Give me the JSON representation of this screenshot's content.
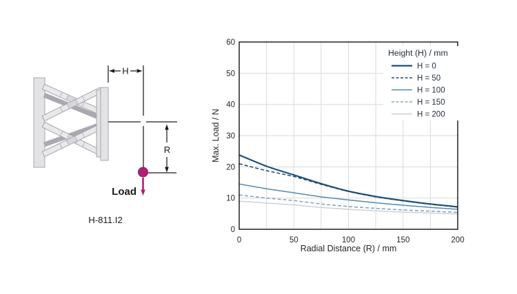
{
  "figure": {
    "caption": "H-811.I2",
    "dim_h_label": "H",
    "dim_r_label": "R",
    "load_label": "Load",
    "marker_color": "#b01e77"
  },
  "chart_data": {
    "type": "line",
    "title": "",
    "xlabel": "Radial Distance (R) / mm",
    "ylabel": "Max. Load / N",
    "xlim": [
      0,
      200
    ],
    "ylim": [
      0,
      60
    ],
    "x_ticks": [
      0,
      50,
      100,
      150,
      200
    ],
    "y_ticks": [
      0,
      10,
      20,
      30,
      40,
      50,
      60
    ],
    "x_grid_step": 25,
    "y_grid_step": 10,
    "grid": true,
    "grid_color": "#d9d9d9",
    "legend_title": "Height (H) / mm",
    "legend_position": "top-right",
    "x": [
      0,
      25,
      50,
      75,
      100,
      125,
      150,
      175,
      200
    ],
    "series": [
      {
        "name": "H = 0",
        "color": "#1f4e79",
        "dash": false,
        "width": 2.2,
        "values": [
          23.8,
          20.2,
          17.4,
          14.6,
          12.2,
          10.5,
          9.2,
          8.1,
          7.2
        ]
      },
      {
        "name": "H = 50",
        "color": "#1f4e79",
        "dash": true,
        "width": 1.6,
        "values": [
          21.0,
          18.8,
          16.9,
          14.4,
          12.1,
          10.4,
          9.1,
          8.0,
          7.1
        ]
      },
      {
        "name": "H = 100",
        "color": "#5688b0",
        "dash": false,
        "width": 1.5,
        "values": [
          14.5,
          13.0,
          11.7,
          10.4,
          9.4,
          8.5,
          7.7,
          7.0,
          6.4
        ]
      },
      {
        "name": "H = 150",
        "color": "#7fa6c4",
        "dash": true,
        "width": 1.6,
        "values": [
          11.0,
          10.0,
          9.2,
          8.1,
          7.3,
          6.7,
          6.2,
          5.8,
          5.4
        ]
      },
      {
        "name": "H = 200",
        "color": "#c9ced4",
        "dash": false,
        "width": 1.4,
        "values": [
          9.0,
          8.4,
          7.8,
          7.0,
          6.4,
          5.9,
          5.5,
          5.2,
          4.9
        ]
      }
    ]
  }
}
